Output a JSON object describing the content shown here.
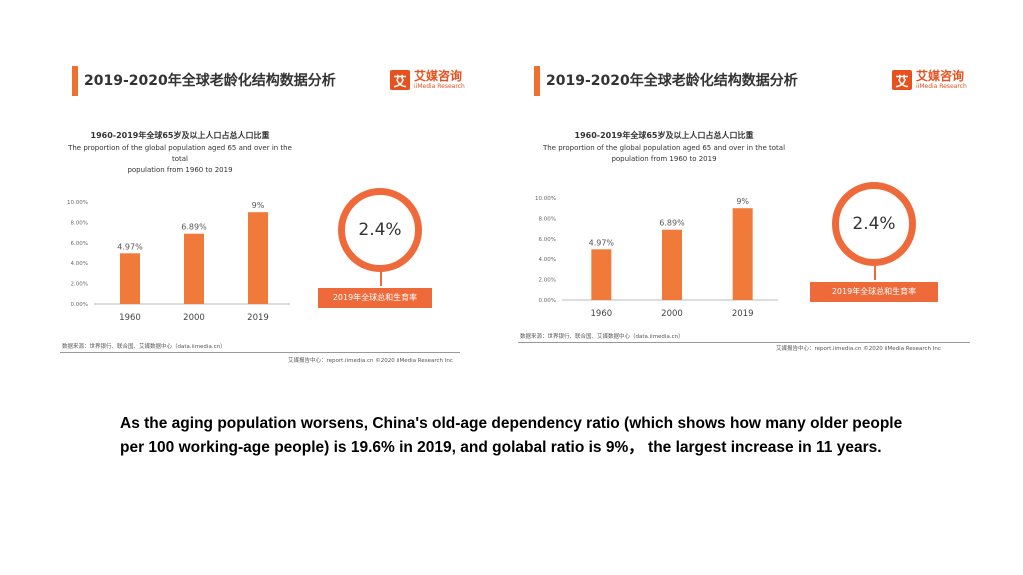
{
  "slide": {
    "caption": "As the aging population worsens, China's old-age dependency ratio (which shows how many older people per 100 working-age people) is 19.6% in 2019, and golabal ratio is 9%， the largest increase in 11 years."
  },
  "panels": [
    {
      "header_title": "2019-2020年全球老龄化结构数据分析",
      "logo_cn": "艾媒咨询",
      "logo_en": "iiMedia Research",
      "logo_mark": "艾",
      "chart_title_cn": "1960-2019年全球65岁及以上人口占总人口比重",
      "chart_title_en1": "The proportion of the global population aged 65 and over in the total",
      "chart_title_en2": "population from 1960 to 2019",
      "ring_value": "2.4%",
      "ring_label": "2019年全球总和生育率",
      "source": "数据来源：世界银行、联合国、艾媒数据中心（data.iimedia.cn）",
      "footer": "艾媒报告中心：report.iimedia.cn  ©2020  iiMedia Research  Inc"
    },
    {
      "header_title": "2019-2020年全球老龄化结构数据分析",
      "logo_cn": "艾媒咨询",
      "logo_en": "iiMedia Research",
      "logo_mark": "艾",
      "chart_title_cn": "1960-2019年全球65岁及以上人口占总人口比重",
      "chart_title_en1": "The proportion of the global population aged 65 and over in the total",
      "chart_title_en2": "population from 1960 to 2019",
      "ring_value": "2.4%",
      "ring_label": "2019年全球总和生育率",
      "source": "数据来源：世界银行、联合国、艾媒数据中心（data.iimedia.cn）",
      "footer": "艾媒报告中心：report.iimedia.cn  ©2020  iiMedia Research  Inc"
    }
  ],
  "chart_data": [
    {
      "type": "bar",
      "title": "1960-2019年全球65岁及以上人口占总人口比重",
      "subtitle": "The proportion of the global population aged 65 and over in the total population from 1960 to 2019",
      "categories": [
        "1960",
        "2000",
        "2019"
      ],
      "values": [
        4.97,
        6.89,
        9.0
      ],
      "data_labels": [
        "4.97%",
        "6.89%",
        "9%"
      ],
      "yticks": [
        "0.00%",
        "2.00%",
        "4.00%",
        "6.00%",
        "8.00%",
        "10.00%"
      ],
      "ylim": [
        0,
        10
      ],
      "color": "#ef7a3a",
      "grid": false
    },
    {
      "type": "bar",
      "title": "1960-2019年全球65岁及以上人口占总人口比重",
      "subtitle": "The proportion of the global population aged 65 and over in the total population from 1960 to 2019",
      "categories": [
        "1960",
        "2000",
        "2019"
      ],
      "values": [
        4.97,
        6.89,
        9.0
      ],
      "data_labels": [
        "4.97%",
        "6.89%",
        "9%"
      ],
      "yticks": [
        "0.00%",
        "2.00%",
        "4.00%",
        "6.00%",
        "8.00%",
        "10.00%"
      ],
      "ylim": [
        0,
        10
      ],
      "color": "#ef7a3a",
      "grid": false
    }
  ]
}
